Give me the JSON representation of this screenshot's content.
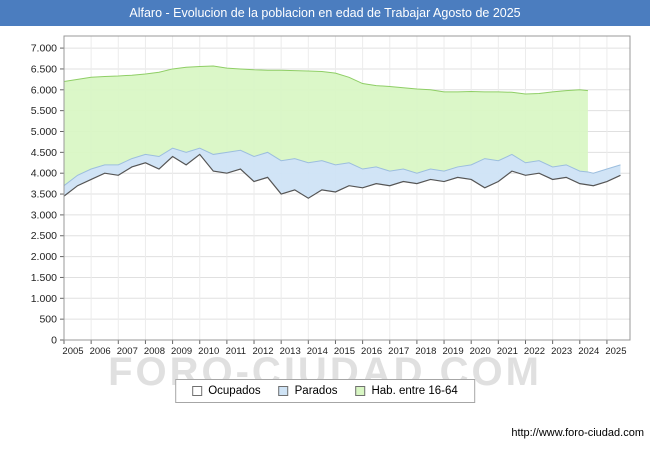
{
  "header": {
    "title": "Alfaro - Evolucion de la poblacion en edad de Trabajar Agosto de 2025"
  },
  "footer": {
    "watermark": "FORO-CIUDAD.COM",
    "url": "http://www.foro-ciudad.com"
  },
  "colors": {
    "title_bar": "#4b7dbf",
    "ocupados_line": "#555555",
    "parados_fill": "#cfe3f5",
    "parados_line": "#9cbede",
    "hab_fill": "#d8f6c3",
    "hab_line": "#8fce66",
    "grid": "#e0e0e0",
    "vgrid": "#ececec",
    "axis": "#999999"
  },
  "legend": {
    "items": [
      {
        "label": "Ocupados",
        "color": "#ffffff"
      },
      {
        "label": "Parados",
        "color": "#cfe3f5"
      },
      {
        "label": "Hab. entre 16-64",
        "color": "#d8f6c3"
      }
    ]
  },
  "axes": {
    "y_tick_values": [
      0,
      500,
      1000,
      1500,
      2000,
      2500,
      3000,
      3500,
      4000,
      4500,
      5000,
      5500,
      6000,
      6500,
      7000
    ],
    "y_tick_labels": [
      "0",
      "500",
      "1.000",
      "1.500",
      "2.000",
      "2.500",
      "3.000",
      "3.500",
      "4.000",
      "4.500",
      "5.000",
      "5.500",
      "6.000",
      "6.500",
      "7.000"
    ],
    "x_tick_labels": [
      "2005",
      "2006",
      "2007",
      "2008",
      "2009",
      "2010",
      "2011",
      "2012",
      "2013",
      "2014",
      "2015",
      "2016",
      "2017",
      "2018",
      "2019",
      "2020",
      "2021",
      "2022",
      "2023",
      "2024",
      "2025"
    ]
  },
  "chart_data": {
    "type": "area",
    "title": "Alfaro - Evolucion de la poblacion en edad de Trabajar Agosto de 2025",
    "xlabel": "",
    "ylabel": "",
    "ylim": [
      0,
      7000
    ],
    "xlim": [
      2005,
      2025.85
    ],
    "grid": true,
    "legend_position": "bottom",
    "note": "Stacked bands: values are the upper boundary of each band as drawn. Hab. entre 16-64 series ends mid-2024 (vertical drop).",
    "x": [
      2005,
      2005.5,
      2006,
      2006.5,
      2007,
      2007.5,
      2008,
      2008.5,
      2009,
      2009.5,
      2010,
      2010.5,
      2011,
      2011.5,
      2012,
      2012.5,
      2013,
      2013.5,
      2014,
      2014.5,
      2015,
      2015.5,
      2016,
      2016.5,
      2017,
      2017.5,
      2018,
      2018.5,
      2019,
      2019.5,
      2020,
      2020.5,
      2021,
      2021.5,
      2022,
      2022.5,
      2023,
      2023.5,
      2024,
      2024.3,
      2024.5,
      2025,
      2025.5
    ],
    "series": [
      {
        "name": "Ocupados",
        "values": [
          3450,
          3700,
          3850,
          4000,
          3950,
          4150,
          4250,
          4100,
          4400,
          4200,
          4450,
          4050,
          4000,
          4100,
          3800,
          3900,
          3500,
          3600,
          3400,
          3600,
          3550,
          3700,
          3650,
          3750,
          3700,
          3800,
          3750,
          3850,
          3800,
          3900,
          3850,
          3650,
          3800,
          4050,
          3950,
          4000,
          3850,
          3900,
          3750,
          3720,
          3700,
          3800,
          3950
        ]
      },
      {
        "name": "Parados",
        "values": [
          3700,
          3950,
          4100,
          4200,
          4200,
          4350,
          4450,
          4400,
          4600,
          4500,
          4600,
          4450,
          4500,
          4550,
          4400,
          4500,
          4300,
          4350,
          4250,
          4300,
          4200,
          4250,
          4100,
          4150,
          4050,
          4100,
          4000,
          4100,
          4050,
          4150,
          4200,
          4350,
          4300,
          4450,
          4250,
          4300,
          4150,
          4200,
          4050,
          4030,
          4000,
          4100,
          4200
        ]
      },
      {
        "name": "Hab. entre 16-64",
        "values": [
          6200,
          6250,
          6300,
          6320,
          6330,
          6350,
          6380,
          6420,
          6500,
          6540,
          6560,
          6570,
          6520,
          6500,
          6480,
          6470,
          6470,
          6460,
          6450,
          6440,
          6400,
          6300,
          6150,
          6100,
          6080,
          6050,
          6020,
          6000,
          5950,
          5950,
          5960,
          5950,
          5950,
          5940,
          5900,
          5910,
          5950,
          5980,
          6000,
          5980,
          null,
          null,
          null
        ]
      }
    ]
  }
}
